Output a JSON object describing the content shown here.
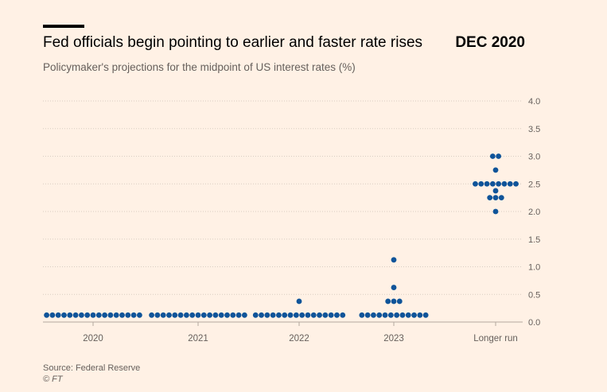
{
  "header": {
    "title": "Fed officials begin pointing to earlier and faster rate rises",
    "period": "DEC 2020",
    "subtitle": "Policymaker's projections for the midpoint of US interest rates (%)"
  },
  "footer": {
    "source": "Source: Federal Reserve",
    "credit": "© FT"
  },
  "colors": {
    "background": "#FFF1E5",
    "dot": "#0F5499",
    "gridline": "#D9CCC1",
    "tick_label": "#66605C"
  },
  "chart_data": {
    "type": "scatter",
    "title": "Fed officials begin pointing to earlier and faster rate rises",
    "subtitle": "Policymaker's projections for the midpoint of US interest rates (%)",
    "xlabel": "",
    "ylabel": "%",
    "ylim": [
      0,
      4.0
    ],
    "yticks": [
      "0.0",
      "0.5",
      "1.0",
      "1.5",
      "2.0",
      "2.5",
      "3.0",
      "3.5",
      "4.0"
    ],
    "grid": true,
    "categories": [
      "2020",
      "2021",
      "2022",
      "2023",
      "Longer run"
    ],
    "series": [
      {
        "category": "2020",
        "points": [
          {
            "y": 0.125,
            "count": 17
          }
        ]
      },
      {
        "category": "2021",
        "points": [
          {
            "y": 0.125,
            "count": 17
          }
        ]
      },
      {
        "category": "2022",
        "points": [
          {
            "y": 0.125,
            "count": 16
          },
          {
            "y": 0.375,
            "count": 1
          }
        ]
      },
      {
        "category": "2023",
        "points": [
          {
            "y": 0.125,
            "count": 12
          },
          {
            "y": 0.375,
            "count": 3
          },
          {
            "y": 0.625,
            "count": 1
          },
          {
            "y": 1.125,
            "count": 1
          }
        ]
      },
      {
        "category": "Longer run",
        "points": [
          {
            "y": 2.0,
            "count": 1
          },
          {
            "y": 2.25,
            "count": 3
          },
          {
            "y": 2.375,
            "count": 1
          },
          {
            "y": 2.5,
            "count": 8
          },
          {
            "y": 2.75,
            "count": 1
          },
          {
            "y": 3.0,
            "count": 2
          }
        ]
      }
    ]
  }
}
